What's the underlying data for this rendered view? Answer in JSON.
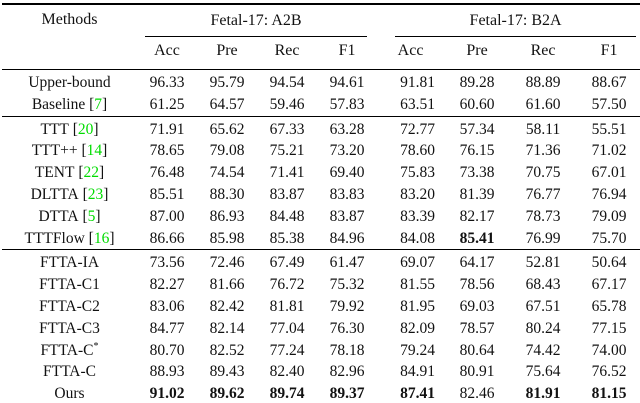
{
  "table": {
    "citation_color": "#00dc00",
    "header": {
      "methods_label": "Methods",
      "groups": [
        {
          "label": "Fetal-17: A2B",
          "columns": [
            "Acc",
            "Pre",
            "Rec",
            "F1"
          ]
        },
        {
          "label": "Fetal-17: B2A",
          "columns": [
            "Acc",
            "Pre",
            "Rec",
            "F1"
          ]
        }
      ]
    },
    "sections": [
      {
        "rows": [
          {
            "method": "Upper-bound",
            "values": [
              "96.33",
              "95.79",
              "94.54",
              "94.61",
              "91.81",
              "89.28",
              "88.89",
              "88.67"
            ]
          },
          {
            "method": "Baseline",
            "cite": "7",
            "values": [
              "61.25",
              "64.57",
              "59.46",
              "57.83",
              "63.51",
              "60.60",
              "61.60",
              "57.50"
            ]
          }
        ]
      },
      {
        "rows": [
          {
            "method": "TTT",
            "cite": "20",
            "values": [
              "71.91",
              "65.62",
              "67.33",
              "63.28",
              "72.77",
              "57.34",
              "58.11",
              "55.51"
            ]
          },
          {
            "method": "TTT++",
            "cite": "14",
            "values": [
              "78.65",
              "79.08",
              "75.21",
              "73.20",
              "78.60",
              "76.15",
              "71.36",
              "71.02"
            ]
          },
          {
            "method": "TENT",
            "cite": "22",
            "values": [
              "76.48",
              "74.54",
              "71.41",
              "69.40",
              "75.83",
              "73.38",
              "70.75",
              "67.01"
            ]
          },
          {
            "method": "DLTTA",
            "cite": "23",
            "values": [
              "85.51",
              "88.30",
              "83.87",
              "83.83",
              "83.20",
              "81.39",
              "76.77",
              "76.94"
            ]
          },
          {
            "method": "DTTA",
            "cite": "5",
            "values": [
              "87.00",
              "86.93",
              "84.48",
              "83.87",
              "83.39",
              "82.17",
              "78.73",
              "79.09"
            ]
          },
          {
            "method": "TTTFlow",
            "cite": "16",
            "values": [
              "86.66",
              "85.98",
              "85.38",
              "84.96",
              "84.08",
              "85.41",
              "76.99",
              "75.70"
            ],
            "bold": [
              5
            ]
          }
        ]
      },
      {
        "rows": [
          {
            "method": "FTTA-IA",
            "values": [
              "73.56",
              "72.46",
              "67.49",
              "61.47",
              "69.07",
              "64.17",
              "52.81",
              "50.64"
            ]
          },
          {
            "method": "FTTA-C1",
            "values": [
              "82.27",
              "81.66",
              "76.72",
              "75.32",
              "81.55",
              "78.56",
              "68.43",
              "67.17"
            ]
          },
          {
            "method": "FTTA-C2",
            "values": [
              "83.06",
              "82.42",
              "81.81",
              "79.92",
              "81.95",
              "69.03",
              "67.51",
              "65.78"
            ]
          },
          {
            "method": "FTTA-C3",
            "values": [
              "84.77",
              "82.14",
              "77.04",
              "76.30",
              "82.09",
              "78.57",
              "80.24",
              "77.15"
            ]
          },
          {
            "method": "FTTA-C",
            "sup": "*",
            "values": [
              "80.70",
              "82.52",
              "77.24",
              "78.18",
              "79.24",
              "80.64",
              "74.42",
              "74.00"
            ]
          },
          {
            "method": "FTTA-C",
            "values": [
              "88.93",
              "89.43",
              "82.40",
              "82.96",
              "84.91",
              "80.91",
              "75.64",
              "76.52"
            ]
          },
          {
            "method": "Ours",
            "values": [
              "91.02",
              "89.62",
              "89.74",
              "89.37",
              "87.41",
              "82.46",
              "81.91",
              "81.15"
            ],
            "bold": [
              0,
              1,
              2,
              3,
              4,
              6,
              7
            ]
          }
        ]
      }
    ]
  }
}
